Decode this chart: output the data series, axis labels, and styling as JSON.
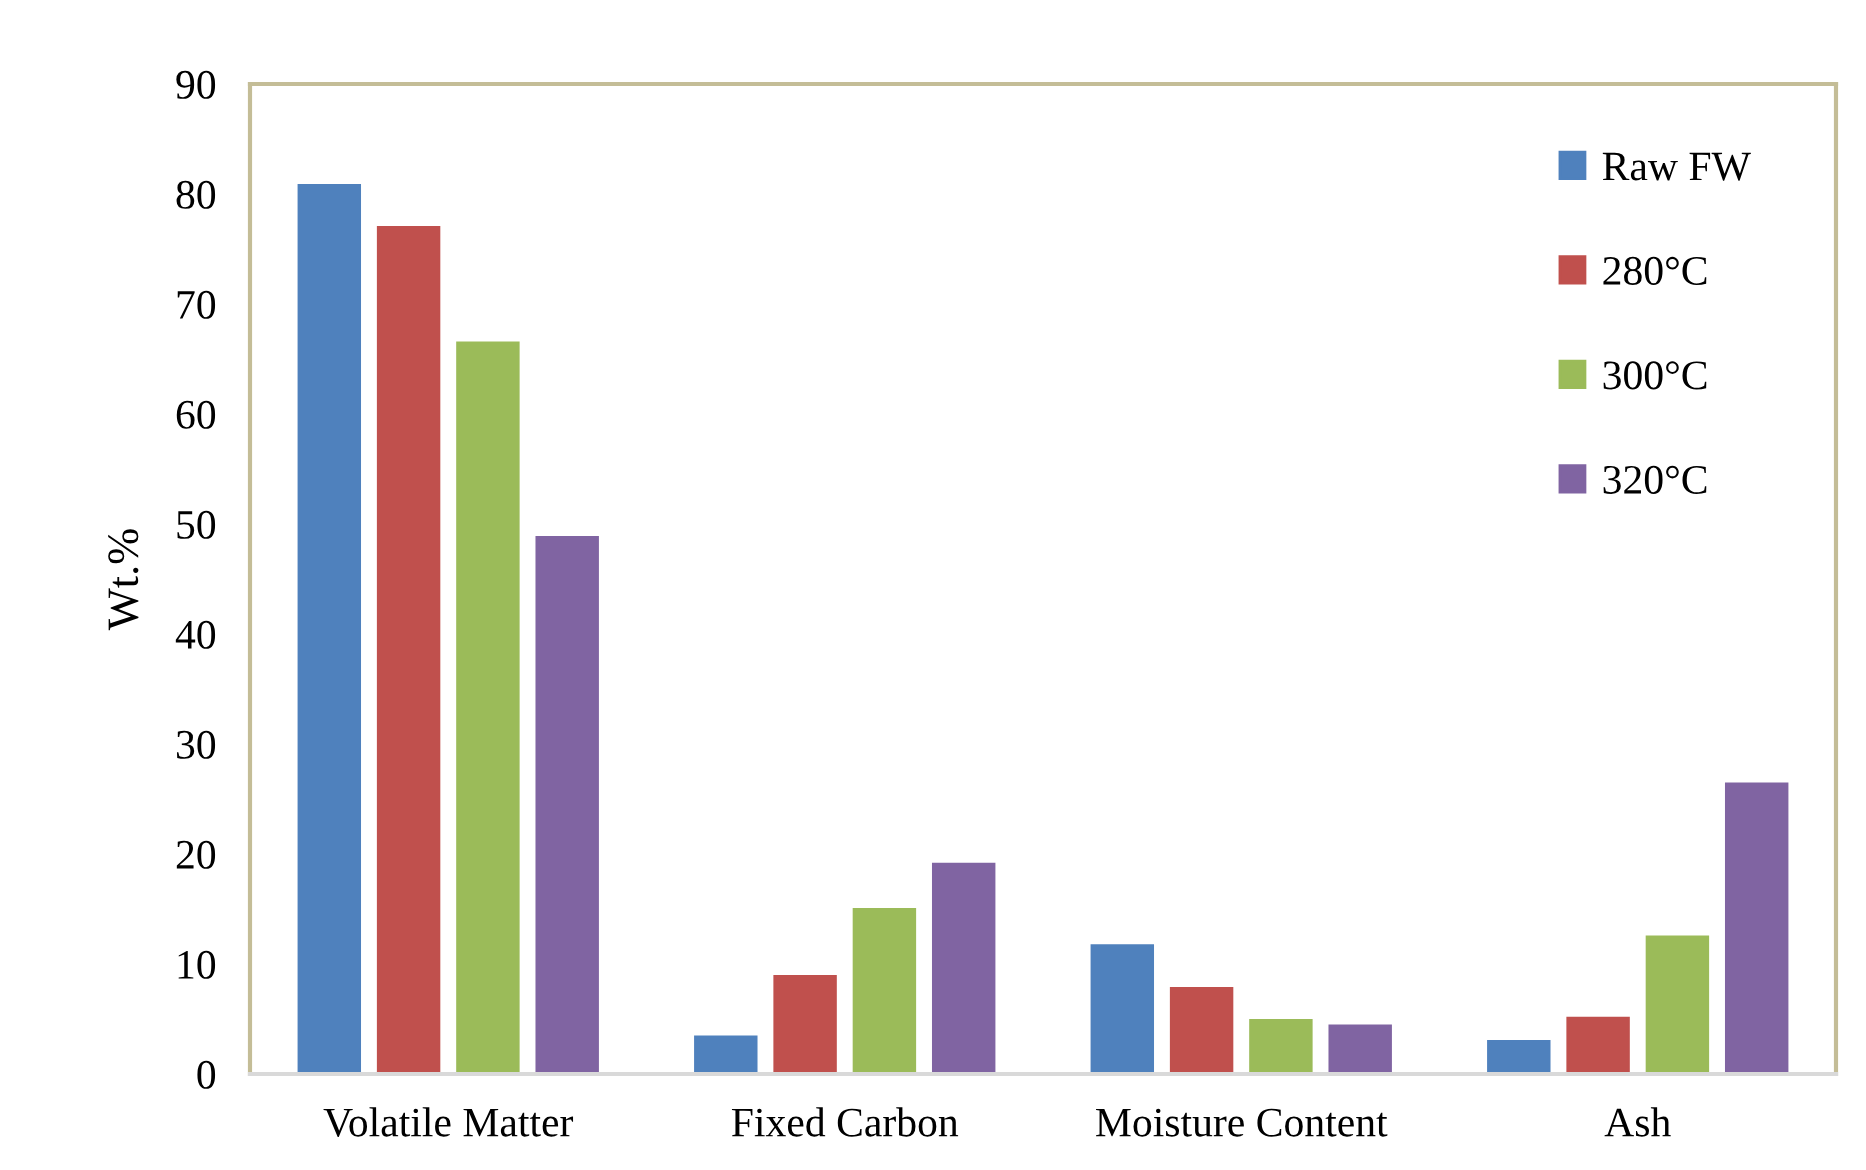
{
  "chart_data": {
    "type": "bar",
    "ylabel": "Wt.%",
    "categories": [
      "Volatile Matter",
      "Fixed Carbon",
      "Moisture Content",
      "Ash"
    ],
    "series": [
      {
        "name": "Raw FW",
        "color": "#4f81bd",
        "values": [
          80.9,
          3.5,
          11.8,
          3.1
        ]
      },
      {
        "name": "280°C",
        "color": "#c0504d",
        "values": [
          77.1,
          9.0,
          7.9,
          5.2
        ]
      },
      {
        "name": "300°C",
        "color": "#9bbb59",
        "values": [
          66.6,
          15.1,
          5.0,
          12.6
        ]
      },
      {
        "name": "320°C",
        "color": "#8064a2",
        "values": [
          48.9,
          19.2,
          4.5,
          26.5
        ]
      }
    ],
    "ylim": [
      0,
      90
    ],
    "yticks": [
      0,
      10,
      20,
      30,
      40,
      50,
      60,
      70,
      80,
      90
    ],
    "grid": false,
    "legend": "top right"
  }
}
